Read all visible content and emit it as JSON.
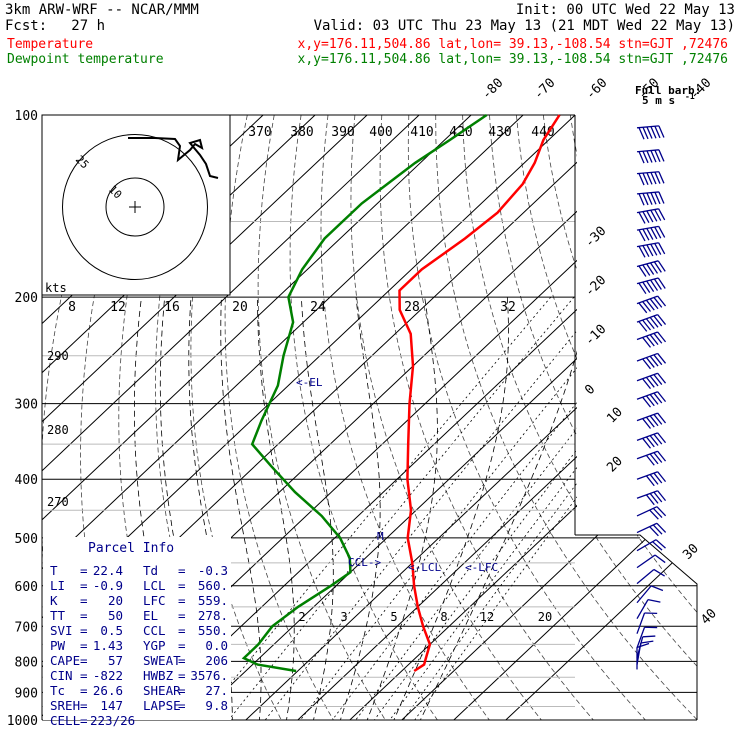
{
  "header": {
    "model": "3km ARW-WRF -- NCAR/MMM",
    "init": "Init: 00 UTC Wed 22 May 13",
    "fcst_label": "Fcst:",
    "fcst_value": "27 h",
    "valid": "Valid: 03 UTC Thu 23 May 13 (21 MDT Wed 22 May 13)",
    "temp_label": "Temperature",
    "temp_info": "x,y=176.11,504.86   lat,lon= 39.13,-108.54  stn=GJT ,72476",
    "dew_label": "Dewpoint temperature",
    "dew_info": "x,y=176.11,504.86   lat,lon= 39.13,-108.54  stn=GJT ,72476",
    "temp_color": "#ff0000",
    "dew_color": "#008000"
  },
  "parcel": {
    "title": "Parcel Info",
    "rows": [
      [
        "T",
        "=",
        "22.4",
        "Td",
        "=",
        "-0.3"
      ],
      [
        "LI",
        "=",
        "-0.9",
        "LCL",
        "=",
        "560."
      ],
      [
        "K",
        "=",
        "20",
        "LFC",
        "=",
        "559."
      ],
      [
        "TT",
        "=",
        "50",
        "EL",
        "=",
        "278."
      ],
      [
        "SVI",
        "=",
        "0.5",
        "CCL",
        "=",
        "550."
      ],
      [
        "PW",
        "=",
        "1.43",
        "YGP",
        "=",
        "0.0"
      ],
      [
        "CAPE",
        "=",
        "57",
        "SWEAT",
        "=",
        "206"
      ],
      [
        "CIN",
        "=",
        "-822",
        "HWBZ",
        "=",
        "3576."
      ],
      [
        "Tc",
        "=",
        "26.6",
        "SHEAR",
        "=",
        "27."
      ],
      [
        "SREH",
        "=",
        "147",
        "LAPSE",
        "=",
        "9.8"
      ],
      [
        "CELL",
        "=",
        "223/26",
        "",
        "",
        ""
      ]
    ]
  },
  "hodograph": {
    "units": "kts",
    "ring_labels": [
      "10",
      "25"
    ]
  },
  "barb_legend": {
    "full": "Full barb:",
    "value": "5 m s",
    "exp": "-1"
  },
  "markers": {
    "el": "<-EL",
    "ccl": "CCL->",
    "lcl": "<-LCL",
    "lfc": "<-LFC",
    "mark": "M"
  },
  "chart_data": {
    "type": "line",
    "yscale": "log",
    "ylabel": "",
    "pressure_ticks": [
      100,
      200,
      300,
      400,
      500,
      600,
      700,
      800,
      900,
      1000
    ],
    "temp_ticks_top": [
      -80,
      -70,
      -60,
      -50,
      -40
    ],
    "temp_ticks_side": [
      -30,
      -20,
      -10,
      0,
      10,
      20,
      30,
      40
    ],
    "theta_labels": [
      370,
      380,
      390,
      400,
      410,
      420,
      430,
      440
    ],
    "theta_low_labels": [
      290,
      280,
      270
    ],
    "mixing_ratio_labels_upper": [
      8,
      12,
      16,
      20,
      24,
      28,
      32
    ],
    "mixing_ratio_labels_lower": [
      2,
      3,
      5,
      8,
      12,
      20
    ],
    "series": [
      {
        "name": "Temperature",
        "color": "#ff0000",
        "p": [
          100,
          110,
          120,
          130,
          145,
          160,
          180,
          195,
          210,
          230,
          260,
          300,
          350,
          400,
          450,
          500,
          550,
          600,
          650,
          700,
          750,
          790,
          810,
          830
        ],
        "t": [
          -63,
          -61,
          -58,
          -56,
          -55,
          -56,
          -58,
          -58,
          -54,
          -47,
          -40,
          -33,
          -25,
          -18,
          -11,
          -6,
          0,
          5,
          10,
          15,
          20,
          22,
          23,
          22.4
        ]
      },
      {
        "name": "Dewpoint temperature",
        "color": "#008000",
        "p": [
          100,
          110,
          120,
          140,
          160,
          180,
          200,
          220,
          250,
          280,
          320,
          350,
          380,
          420,
          460,
          500,
          540,
          570,
          600,
          650,
          700,
          750,
          790,
          810,
          830
        ],
        "t": [
          -77,
          -79,
          -81,
          -83,
          -83,
          -81,
          -78,
          -72,
          -67,
          -62,
          -58,
          -55,
          -47,
          -37,
          -27,
          -19,
          -13,
          -10,
          -11,
          -13,
          -14,
          -13,
          -13,
          -9,
          -0.3
        ]
      }
    ],
    "winds_ms": [
      {
        "p": 105,
        "dir": 265,
        "spd": 30
      },
      {
        "p": 115,
        "dir": 265,
        "spd": 30
      },
      {
        "p": 125,
        "dir": 265,
        "spd": 30
      },
      {
        "p": 135,
        "dir": 265,
        "spd": 30
      },
      {
        "p": 145,
        "dir": 260,
        "spd": 30
      },
      {
        "p": 155,
        "dir": 260,
        "spd": 30
      },
      {
        "p": 165,
        "dir": 260,
        "spd": 30
      },
      {
        "p": 178,
        "dir": 255,
        "spd": 30
      },
      {
        "p": 190,
        "dir": 255,
        "spd": 30
      },
      {
        "p": 205,
        "dir": 250,
        "spd": 30
      },
      {
        "p": 220,
        "dir": 250,
        "spd": 30
      },
      {
        "p": 235,
        "dir": 250,
        "spd": 25
      },
      {
        "p": 255,
        "dir": 250,
        "spd": 25
      },
      {
        "p": 275,
        "dir": 250,
        "spd": 25
      },
      {
        "p": 295,
        "dir": 250,
        "spd": 25
      },
      {
        "p": 320,
        "dir": 250,
        "spd": 25
      },
      {
        "p": 345,
        "dir": 250,
        "spd": 25
      },
      {
        "p": 370,
        "dir": 250,
        "spd": 20
      },
      {
        "p": 400,
        "dir": 250,
        "spd": 20
      },
      {
        "p": 430,
        "dir": 250,
        "spd": 20
      },
      {
        "p": 460,
        "dir": 245,
        "spd": 15
      },
      {
        "p": 490,
        "dir": 245,
        "spd": 15
      },
      {
        "p": 525,
        "dir": 240,
        "spd": 10
      },
      {
        "p": 560,
        "dir": 235,
        "spd": 5
      },
      {
        "p": 595,
        "dir": 230,
        "spd": 5
      },
      {
        "p": 640,
        "dir": 220,
        "spd": 5
      },
      {
        "p": 680,
        "dir": 210,
        "spd": 5
      },
      {
        "p": 720,
        "dir": 200,
        "spd": 5
      },
      {
        "p": 760,
        "dir": 200,
        "spd": 5
      },
      {
        "p": 790,
        "dir": 195,
        "spd": 5
      },
      {
        "p": 810,
        "dir": 190,
        "spd": 5
      },
      {
        "p": 825,
        "dir": 180,
        "spd": 5
      }
    ],
    "hodograph_trace_kts": [
      [
        0,
        -4
      ],
      [
        0,
        20
      ],
      [
        3,
        21
      ],
      [
        6,
        20
      ],
      [
        10,
        19
      ],
      [
        11,
        17
      ],
      [
        14,
        18
      ],
      [
        16,
        15
      ],
      [
        18,
        13
      ],
      [
        19,
        12
      ],
      [
        20,
        10
      ],
      [
        21,
        8
      ],
      [
        22,
        6
      ],
      [
        23,
        5
      ],
      [
        24,
        4
      ]
    ]
  }
}
